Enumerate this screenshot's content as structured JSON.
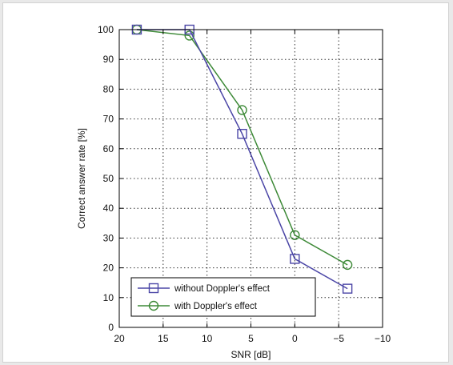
{
  "chart_data": {
    "type": "line",
    "title": "",
    "xlabel": "SNR [dB]",
    "ylabel": "Correct answer rate [%]",
    "xlim": [
      20,
      -10
    ],
    "ylim": [
      0,
      100
    ],
    "x_reversed": true,
    "xticks": [
      20,
      15,
      10,
      5,
      0,
      -5,
      -10
    ],
    "xtick_labels": [
      "20",
      "15",
      "10",
      "5",
      "0",
      "−5",
      "−10"
    ],
    "yticks": [
      0,
      10,
      20,
      30,
      40,
      50,
      60,
      70,
      80,
      90,
      100
    ],
    "grid": true,
    "grid_style": "dotted",
    "legend_position": "bottom-left",
    "series": [
      {
        "name": "without Doppler's effect",
        "marker": "square",
        "color": "#4b46a6",
        "x": [
          18,
          12,
          6,
          0,
          -6
        ],
        "y": [
          100,
          100,
          65,
          23,
          13
        ]
      },
      {
        "name": "with Doppler's effect",
        "marker": "circle",
        "color": "#3e8a38",
        "x": [
          18,
          12,
          6,
          0,
          -6
        ],
        "y": [
          100,
          98,
          73,
          31,
          21
        ]
      }
    ]
  }
}
